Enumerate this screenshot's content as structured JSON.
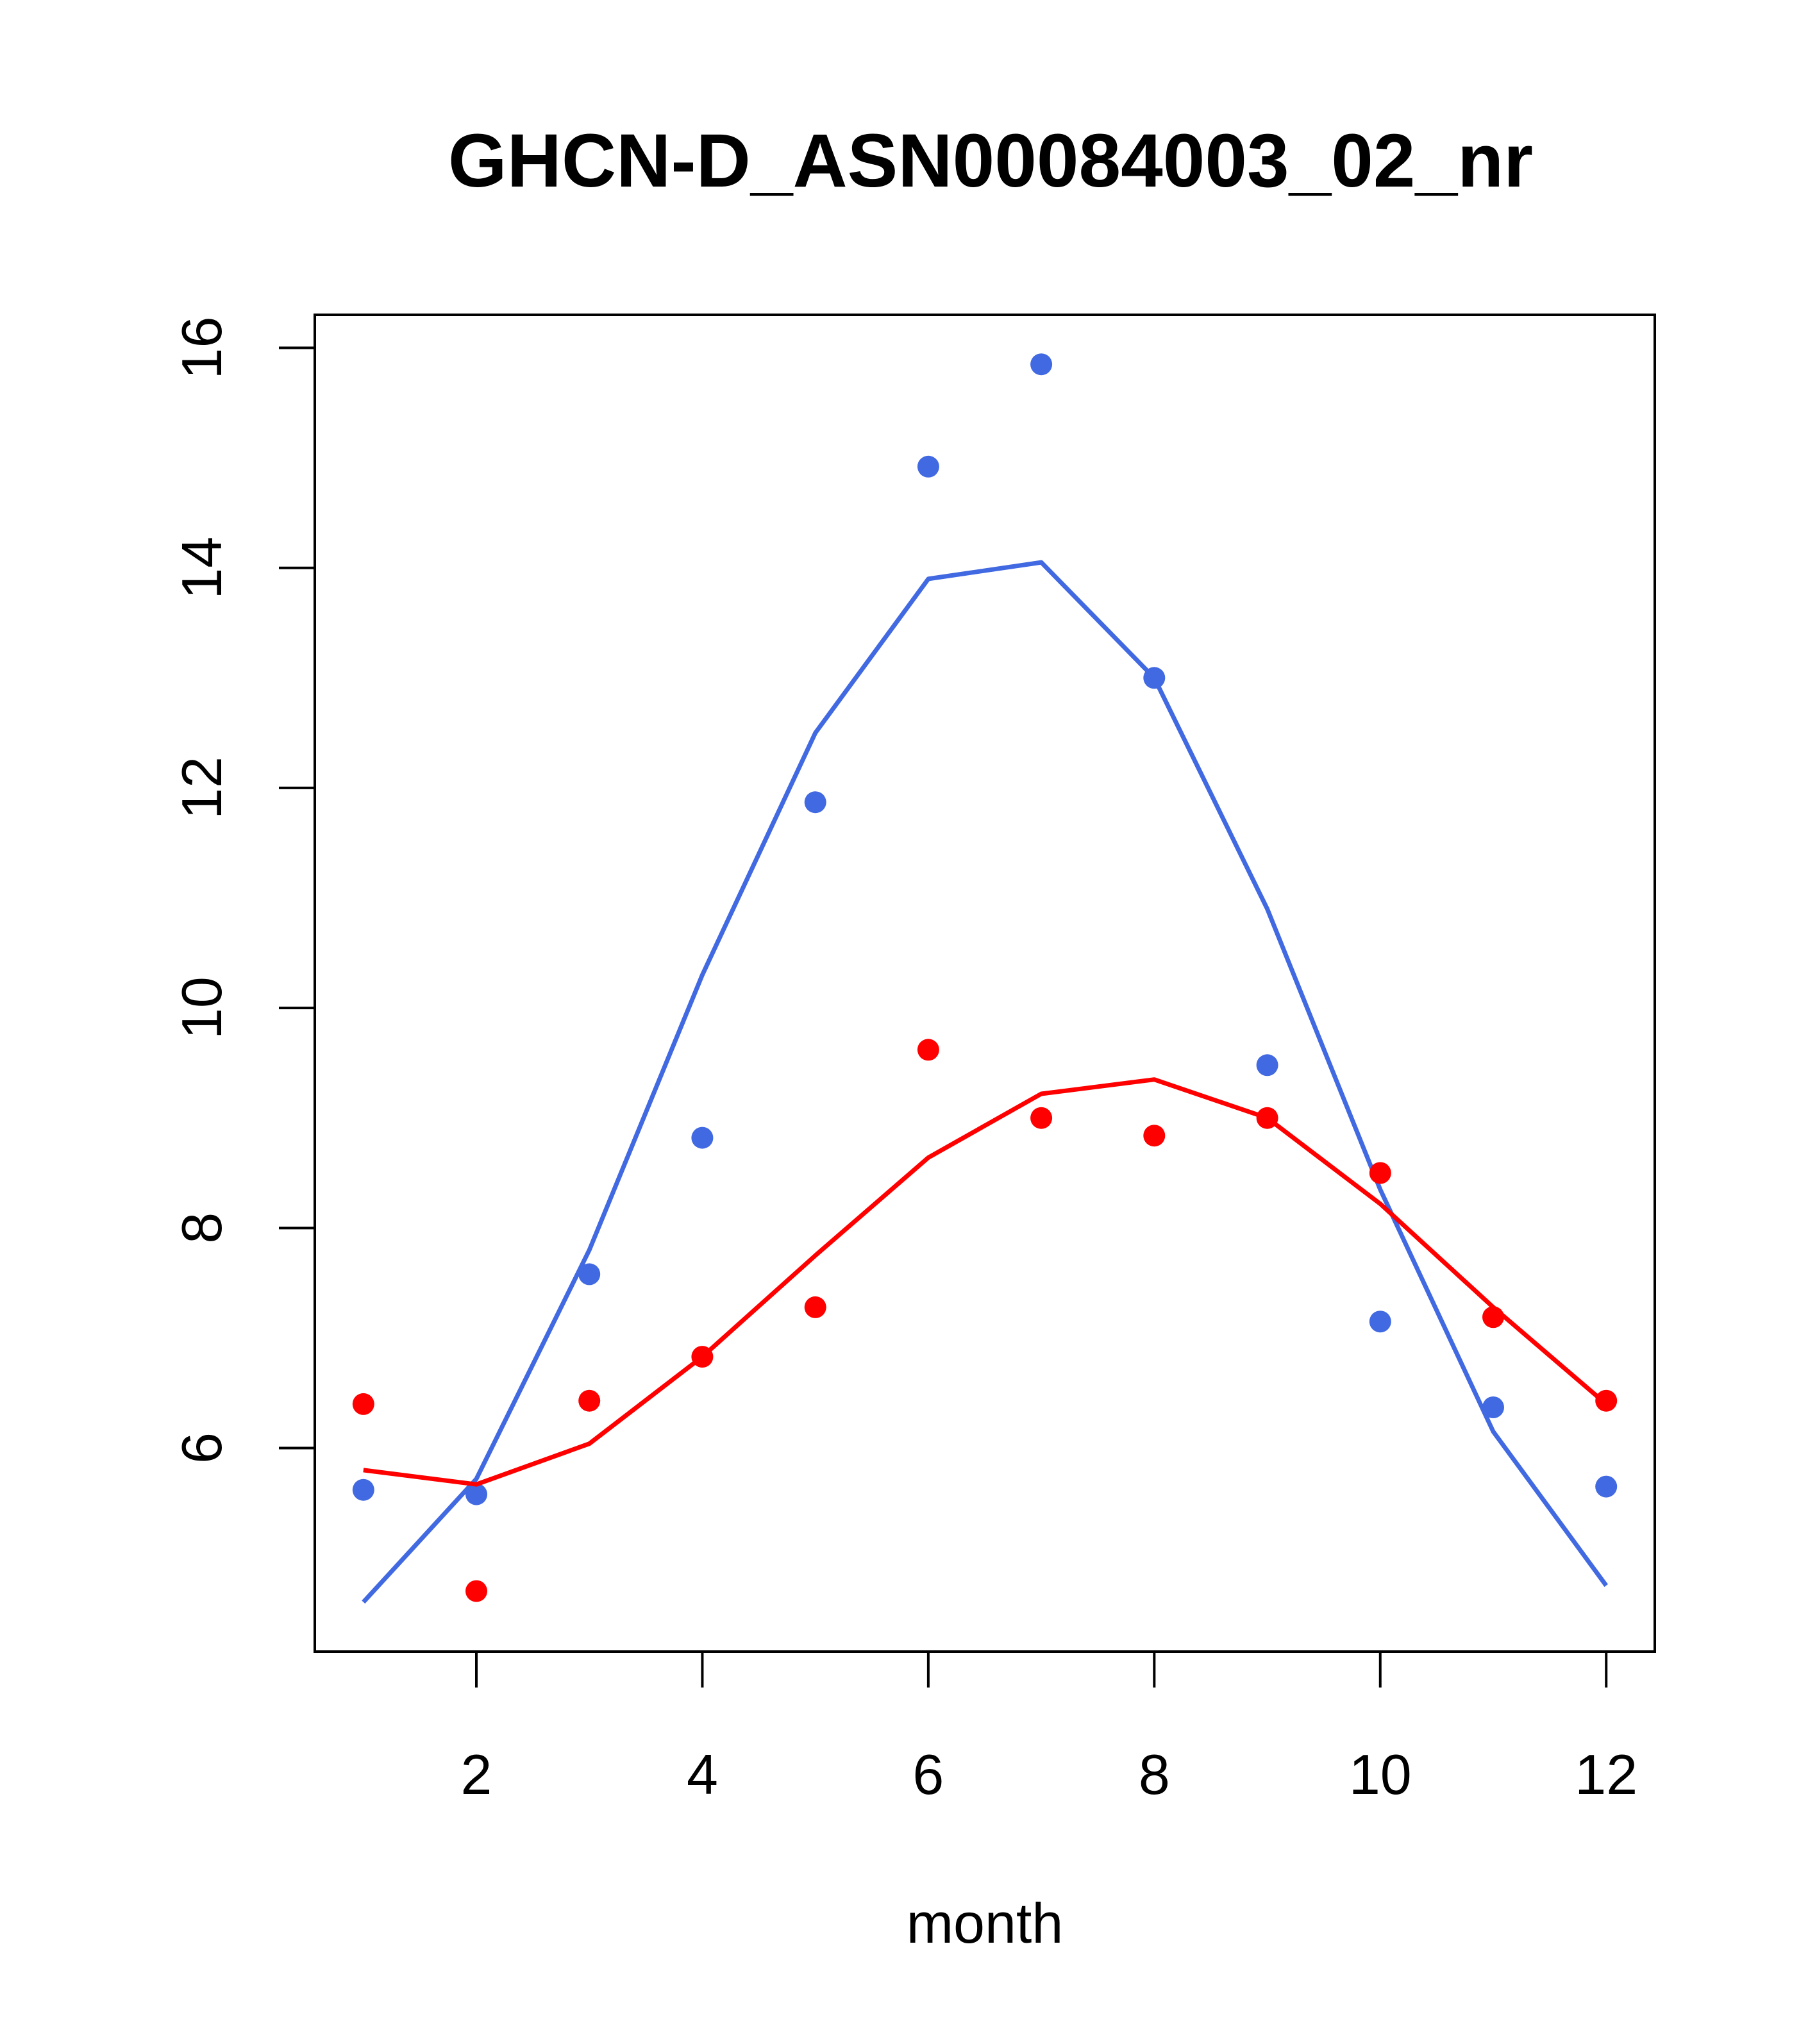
{
  "chart_data": {
    "type": "scatter",
    "title": "GHCN-D_ASN00084003_02_nr",
    "xlabel": "month",
    "ylabel": "",
    "xlim": [
      0.57,
      12.43
    ],
    "ylim": [
      4.15,
      16.3
    ],
    "x_ticks": [
      2,
      4,
      6,
      8,
      10,
      12
    ],
    "y_ticks": [
      6,
      8,
      10,
      12,
      14,
      16
    ],
    "grid": false,
    "legend": "none",
    "series": [
      {
        "color": "#4169E1",
        "points_x": [
          1,
          2,
          3,
          4,
          5,
          6,
          7,
          8,
          9,
          10,
          11,
          12
        ],
        "points_y": [
          5.62,
          5.58,
          7.58,
          8.82,
          11.87,
          14.92,
          15.85,
          13.0,
          9.48,
          7.15,
          6.37,
          5.65
        ],
        "line_x": [
          1,
          2,
          3,
          4,
          5,
          6,
          7,
          8,
          9,
          10,
          11,
          12
        ],
        "line_y": [
          4.6,
          5.72,
          7.8,
          10.3,
          12.5,
          13.9,
          14.05,
          13.0,
          10.9,
          8.35,
          6.15,
          4.75
        ]
      },
      {
        "color": "#FF0000",
        "points_x": [
          1,
          2,
          3,
          4,
          5,
          6,
          7,
          8,
          9,
          10,
          11,
          12
        ],
        "points_y": [
          6.4,
          4.7,
          6.43,
          6.83,
          7.28,
          9.62,
          9.0,
          8.84,
          9.0,
          8.5,
          7.19,
          6.43
        ],
        "line_x": [
          1,
          2,
          3,
          4,
          5,
          6,
          7,
          8,
          9,
          10,
          11,
          12
        ],
        "line_y": [
          5.8,
          5.67,
          6.04,
          6.83,
          7.75,
          8.64,
          9.22,
          9.35,
          9.0,
          8.22,
          7.28,
          6.4
        ]
      }
    ]
  }
}
